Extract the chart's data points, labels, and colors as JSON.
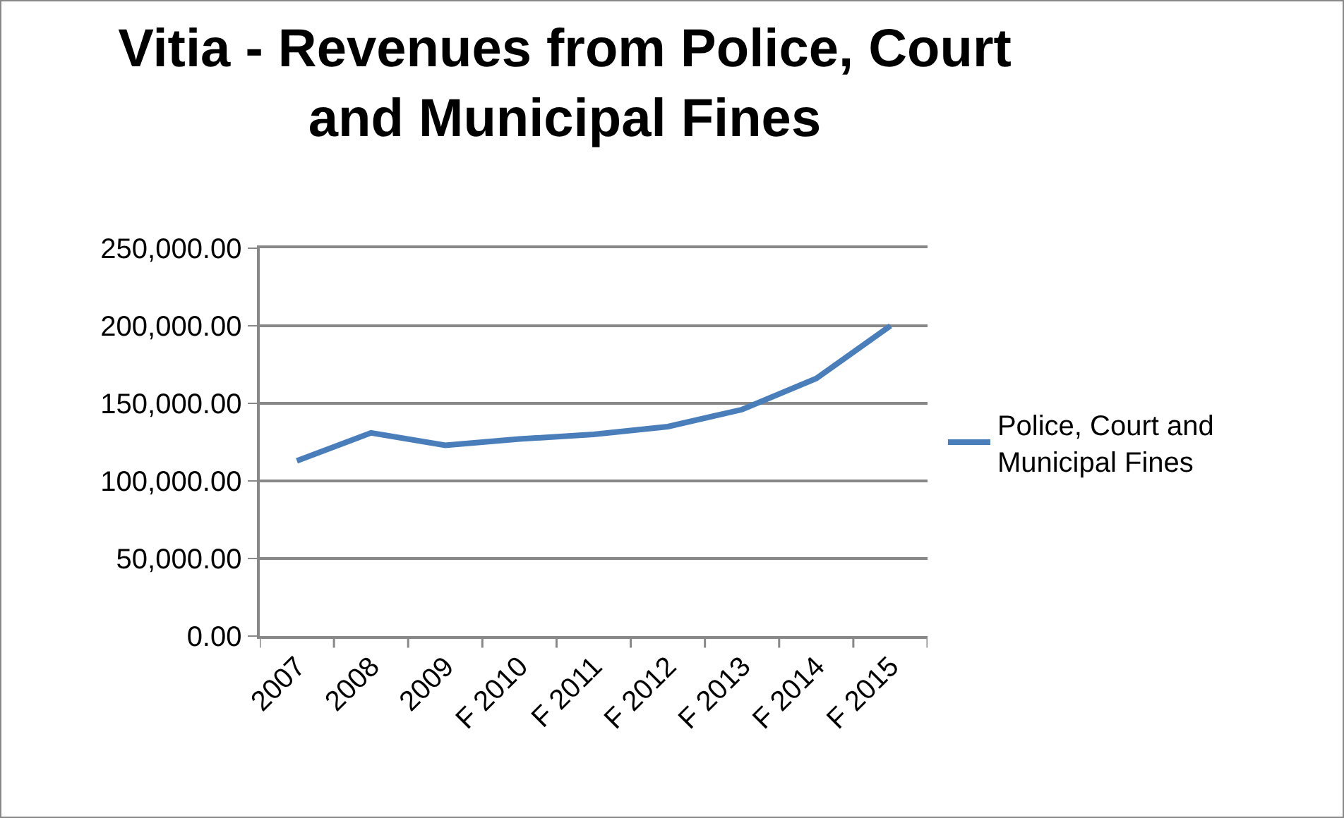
{
  "chart_data": {
    "type": "line",
    "title": "Vitia - Revenues from Police, Court and Municipal Fines",
    "categories": [
      "2007",
      "2008",
      "2009",
      "F 2010",
      "F 2011",
      "F 2012",
      "F 2013",
      "F 2014",
      "F 2015"
    ],
    "series": [
      {
        "name": "Police, Court and Municipal Fines",
        "color": "#4a7ebb",
        "values": [
          113000,
          131000,
          123000,
          127000,
          130000,
          135000,
          146000,
          166000,
          200000
        ]
      }
    ],
    "ylim": [
      0,
      250000
    ],
    "yticks": [
      {
        "value": 0,
        "label": "0.00"
      },
      {
        "value": 50000,
        "label": "50,000.00"
      },
      {
        "value": 100000,
        "label": "100,000.00"
      },
      {
        "value": 150000,
        "label": "150,000.00"
      },
      {
        "value": 200000,
        "label": "200,000.00"
      },
      {
        "value": 250000,
        "label": "250,000.00"
      }
    ],
    "grid": "y",
    "legend": "right",
    "marker": "none",
    "line_style": "solid"
  }
}
